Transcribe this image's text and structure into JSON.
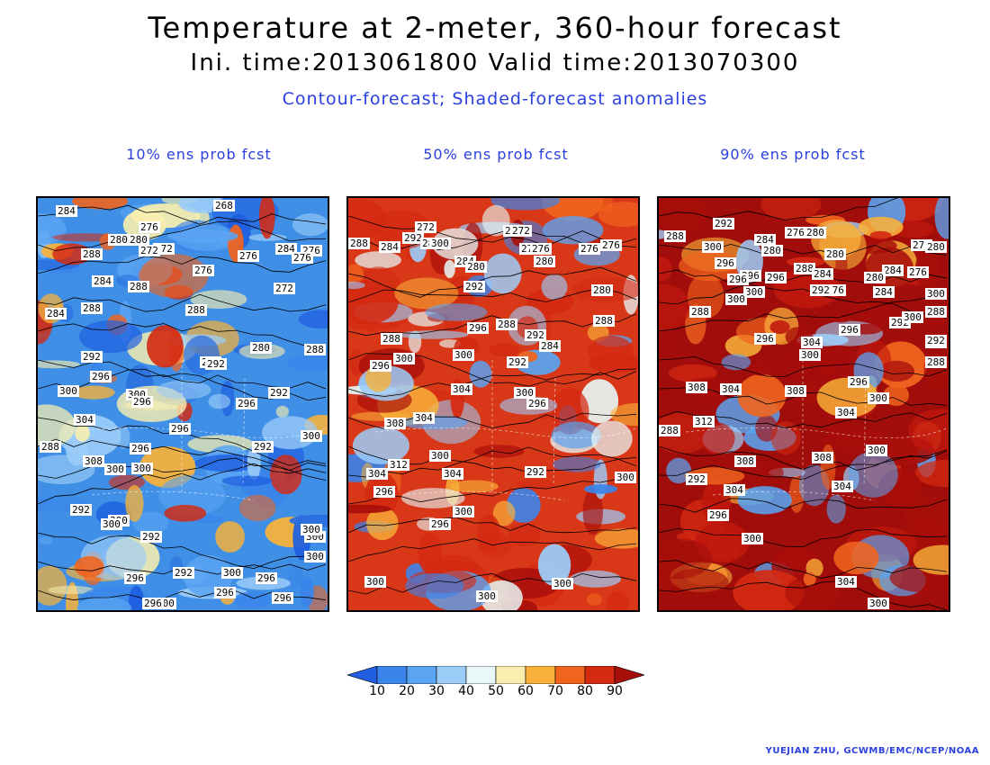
{
  "header": {
    "title": "Temperature at 2-meter, 360-hour forecast",
    "times": "Ini. time:2013061800    Valid time:2013070300",
    "subtitle": "Contour-forecast; Shaded-forecast anomalies"
  },
  "panels": [
    {
      "title": "10% ens prob fcst",
      "base_color": "#3f8fe6",
      "labels": [
        "268",
        "284",
        "276",
        "272",
        "280",
        "288",
        "284",
        "276",
        "272",
        "276",
        "280",
        "284",
        "288",
        "272",
        "288",
        "276",
        "276",
        "284",
        "292",
        "296",
        "300",
        "304",
        "288",
        "296",
        "292",
        "300",
        "296",
        "300",
        "288",
        "280",
        "296",
        "288",
        "292",
        "300",
        "296",
        "292",
        "300",
        "292",
        "300",
        "296",
        "296",
        "300",
        "296",
        "292",
        "300",
        "308",
        "300",
        "296",
        "292",
        "300",
        "296",
        "288",
        "300",
        "300"
      ]
    },
    {
      "title": "50% ens prob fcst",
      "base_color": "#d83818",
      "labels": [
        "272",
        "288",
        "284",
        "292",
        "288",
        "300",
        "272",
        "272",
        "276",
        "284",
        "280",
        "276",
        "280",
        "276",
        "280",
        "292",
        "296",
        "288",
        "292",
        "284",
        "288",
        "300",
        "292",
        "304",
        "300",
        "296",
        "288",
        "308",
        "304",
        "296",
        "300",
        "312",
        "304",
        "300",
        "304",
        "292",
        "296",
        "296",
        "300",
        "300",
        "300",
        "300",
        "276",
        "300"
      ]
    },
    {
      "title": "90% ens prob fcst",
      "base_color": "#a10d0a",
      "labels": [
        "292",
        "288",
        "300",
        "296",
        "284",
        "280",
        "276",
        "280",
        "296",
        "296",
        "288",
        "284",
        "280",
        "276",
        "284",
        "300",
        "292",
        "300",
        "296",
        "288",
        "304",
        "300",
        "292",
        "296",
        "308",
        "304",
        "308",
        "300",
        "296",
        "304",
        "312",
        "288",
        "308",
        "300",
        "304",
        "292",
        "304",
        "300",
        "296",
        "300",
        "304",
        "300",
        "272",
        "280",
        "288",
        "296",
        "292",
        "288",
        "276",
        "284",
        "280",
        "300",
        "308",
        "296"
      ]
    }
  ],
  "colorbar": {
    "labels": [
      "10",
      "20",
      "30",
      "40",
      "50",
      "60",
      "70",
      "80",
      "90"
    ],
    "colors": [
      "#1f5fe0",
      "#3a84ec",
      "#5aa4f2",
      "#9cccf8",
      "#e8f8f8",
      "#f8eeae",
      "#f8b23a",
      "#f0641e",
      "#d42a12",
      "#a80e0a"
    ]
  },
  "credit": "YUEJIAN ZHU, GCWMB/EMC/NCEP/NOAA"
}
